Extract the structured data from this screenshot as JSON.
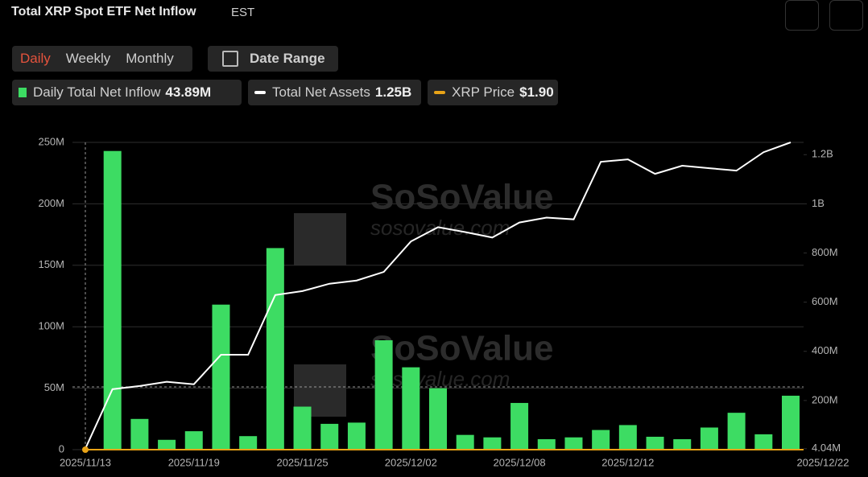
{
  "header": {
    "title": "Total XRP Spot ETF Net Inflow",
    "timezone": "EST",
    "tabs": [
      "Daily",
      "Weekly",
      "Monthly"
    ],
    "date_range": "Date Range"
  },
  "chart_data": {
    "type": "bar",
    "watermark": [
      "SoSoValue",
      "sosovalue.com"
    ],
    "categories": [
      "2025/11/13",
      null,
      null,
      null,
      "2025/11/19",
      null,
      null,
      null,
      "2025/11/25",
      null,
      null,
      null,
      "2025/12/02",
      null,
      null,
      null,
      "2025/12/08",
      null,
      null,
      null,
      "2025/12/12",
      null,
      null,
      null,
      null,
      null,
      "2025/12/22"
    ],
    "series": [
      {
        "name": "Daily Total Net Inflow",
        "type": "bar",
        "color": "#3ddc63",
        "legend_value": "43.89M",
        "values": [
          0,
          243,
          25,
          8,
          15,
          118,
          11,
          164,
          35,
          21,
          22,
          89,
          67,
          50,
          12,
          10,
          38,
          8.5,
          10,
          16,
          20,
          10.5,
          8.5,
          18,
          30,
          12.5,
          43.89
        ]
      },
      {
        "name": "Total Net Assets",
        "type": "line",
        "axis": "y2",
        "color": "#ffffff",
        "legend_value": "1.25B",
        "values": [
          4.04,
          246,
          259,
          276,
          266,
          386,
          386,
          629,
          645,
          675,
          688,
          723,
          847,
          905,
          885,
          863,
          924,
          944,
          937,
          1171,
          1181,
          1122,
          1155,
          1145,
          1135,
          1210,
          1250
        ]
      },
      {
        "name": "XRP Price",
        "type": "line",
        "color": "#e8a317",
        "legend_value": "$1.90"
      }
    ],
    "ylim": [
      0,
      250
    ],
    "yticks": [
      0,
      {
        "value": 50,
        "label": "50M"
      },
      {
        "value": 100,
        "label": "100M"
      },
      {
        "value": 150,
        "label": "150M"
      },
      {
        "value": 200,
        "label": "200M"
      },
      {
        "value": 250,
        "label": "250M"
      }
    ],
    "y2lim": [
      0,
      1250
    ],
    "y2ticks": [
      {
        "value": 4.04,
        "label": "4.04M"
      },
      {
        "value": 200,
        "label": "200M"
      },
      {
        "value": 400,
        "label": "400M"
      },
      {
        "value": 600,
        "label": "600M"
      },
      {
        "value": 800,
        "label": "800M"
      },
      {
        "value": 1000,
        "label": "1B"
      },
      {
        "value": 1200,
        "label": "1.2B"
      }
    ],
    "grid": true
  }
}
